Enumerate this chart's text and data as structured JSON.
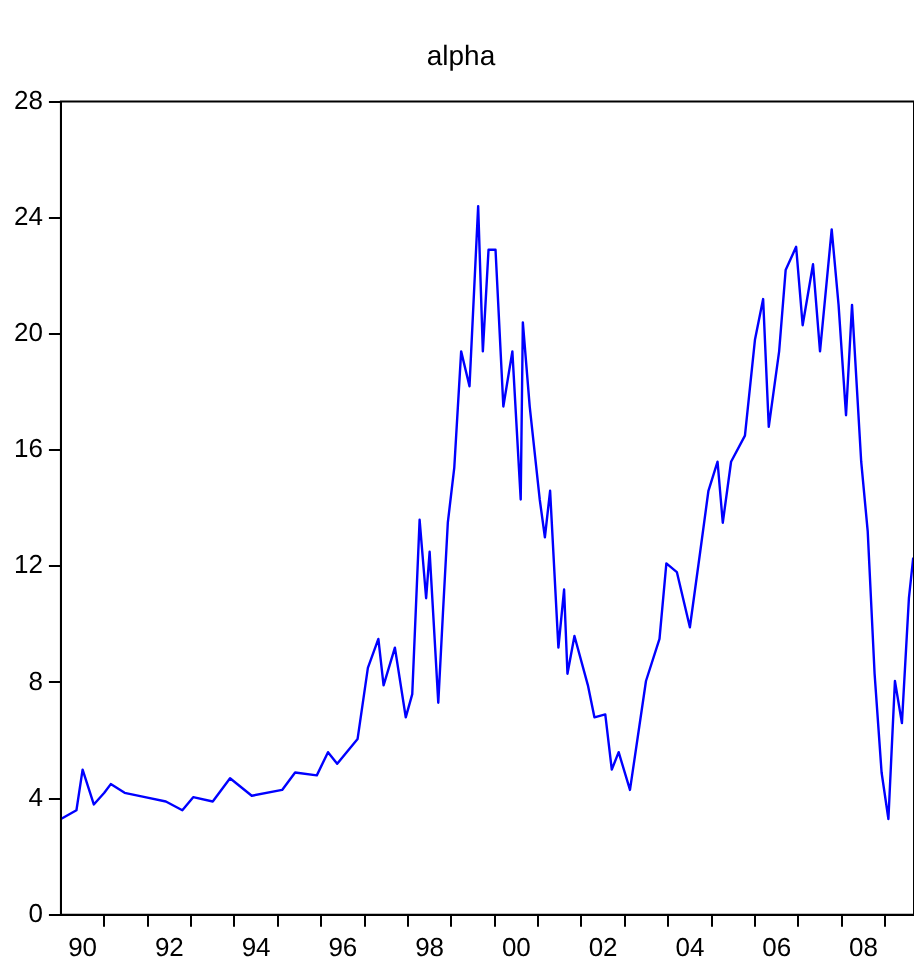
{
  "chart_data": {
    "type": "line",
    "title": "alpha",
    "color": "#0000ff",
    "grid": false,
    "legend": false,
    "marker": "none",
    "line_style": "solid",
    "x": [
      "1990-01-01",
      "1990-05-10",
      "1990-07-01",
      "1990-10-04",
      "1991-01-01",
      "1991-02-25",
      "1991-06-20",
      "1991-12-09",
      "1992-06-02",
      "1992-10-19",
      "1993-01-19",
      "1993-07-01",
      "1993-11-25",
      "1994-05-25",
      "1995-02-07",
      "1995-05-25",
      "1995-11-25",
      "1996-02-28",
      "1996-05-14",
      "1996-11-03",
      "1997-01-29",
      "1997-04-26",
      "1997-06-09",
      "1997-09-13",
      "1997-12-13",
      "1998-02-07",
      "1998-04-08",
      "1998-06-02",
      "1998-07-01",
      "1998-08-17",
      "1998-09-13",
      "1998-10-22",
      "1998-12-02",
      "1999-01-26",
      "1999-03-23",
      "1999-06-02",
      "1999-08-14",
      "1999-09-23",
      "1999-11-10",
      "2000-01-08",
      "2000-03-13",
      "2000-05-28",
      "2000-08-07",
      "2000-08-25",
      "2000-10-22",
      "2001-01-15",
      "2001-02-28",
      "2001-04-11",
      "2001-06-20",
      "2001-08-07",
      "2001-09-05",
      "2001-11-03",
      "2002-02-25",
      "2002-04-19",
      "2002-07-19",
      "2002-09-13",
      "2002-11-10",
      "2003-02-14",
      "2003-06-27",
      "2003-10-19",
      "2003-12-16",
      "2004-03-13",
      "2004-07-01",
      "2004-09-27",
      "2004-12-05",
      "2005-02-21",
      "2005-04-04",
      "2005-06-13",
      "2005-10-08",
      "2006-01-01",
      "2006-03-09",
      "2006-04-26",
      "2006-07-22",
      "2006-09-16",
      "2006-12-13",
      "2007-02-07",
      "2007-05-03",
      "2007-07-01",
      "2007-10-08",
      "2007-12-05",
      "2008-02-07",
      "2008-03-27",
      "2008-06-13",
      "2008-08-07",
      "2008-10-04",
      "2008-12-02",
      "2009-01-29",
      "2009-03-23",
      "2009-05-21",
      "2009-07-19",
      "2009-08-25"
    ],
    "values": [
      3.3,
      3.6,
      5.0,
      3.8,
      4.2,
      4.5,
      4.2,
      4.05,
      3.9,
      3.6,
      4.05,
      3.9,
      4.7,
      4.1,
      4.3,
      4.9,
      4.8,
      5.6,
      5.2,
      6.05,
      8.5,
      9.5,
      7.9,
      9.2,
      6.8,
      7.6,
      13.6,
      10.9,
      12.5,
      9.2,
      7.3,
      10.4,
      13.5,
      15.4,
      19.4,
      18.2,
      24.4,
      19.4,
      22.9,
      22.9,
      17.5,
      19.4,
      14.3,
      20.4,
      17.5,
      14.3,
      13.0,
      14.6,
      9.2,
      11.2,
      8.3,
      9.6,
      7.9,
      6.8,
      6.9,
      5.0,
      5.6,
      4.3,
      8.05,
      9.5,
      12.1,
      11.8,
      9.9,
      12.5,
      14.6,
      15.6,
      13.5,
      15.6,
      16.5,
      19.8,
      21.2,
      16.8,
      19.4,
      22.2,
      23.0,
      20.3,
      22.4,
      19.4,
      23.6,
      21.0,
      17.2,
      21.0,
      15.6,
      13.2,
      8.3,
      4.9,
      3.3,
      8.05,
      6.6,
      10.9,
      12.3
    ],
    "xlim": [
      "1990-01-01",
      "2009-09-01"
    ],
    "xticks": [
      {
        "value": "1990-07-01",
        "label": "90"
      },
      {
        "value": "1991-01-01",
        "label": null
      },
      {
        "value": "1992-01-01",
        "label": null
      },
      {
        "value": "1992-07-01",
        "label": "92"
      },
      {
        "value": "1993-01-01",
        "label": null
      },
      {
        "value": "1994-01-01",
        "label": null
      },
      {
        "value": "1994-07-01",
        "label": "94"
      },
      {
        "value": "1995-01-01",
        "label": null
      },
      {
        "value": "1996-01-01",
        "label": null
      },
      {
        "value": "1996-07-01",
        "label": "96"
      },
      {
        "value": "1997-01-01",
        "label": null
      },
      {
        "value": "1998-01-01",
        "label": null
      },
      {
        "value": "1998-07-01",
        "label": "98"
      },
      {
        "value": "1999-01-01",
        "label": null
      },
      {
        "value": "2000-01-01",
        "label": null
      },
      {
        "value": "2000-07-01",
        "label": "00"
      },
      {
        "value": "2001-01-01",
        "label": null
      },
      {
        "value": "2002-01-01",
        "label": null
      },
      {
        "value": "2002-07-01",
        "label": "02"
      },
      {
        "value": "2003-01-01",
        "label": null
      },
      {
        "value": "2004-01-01",
        "label": null
      },
      {
        "value": "2004-07-01",
        "label": "04"
      },
      {
        "value": "2005-01-01",
        "label": null
      },
      {
        "value": "2006-01-01",
        "label": null
      },
      {
        "value": "2006-07-01",
        "label": "06"
      },
      {
        "value": "2007-01-01",
        "label": null
      },
      {
        "value": "2008-01-01",
        "label": null
      },
      {
        "value": "2008-07-01",
        "label": "08"
      },
      {
        "value": "2009-01-01",
        "label": null
      }
    ],
    "ylim": [
      0,
      28
    ],
    "yticks": [
      0,
      4,
      8,
      12,
      16,
      20,
      24,
      28
    ]
  }
}
